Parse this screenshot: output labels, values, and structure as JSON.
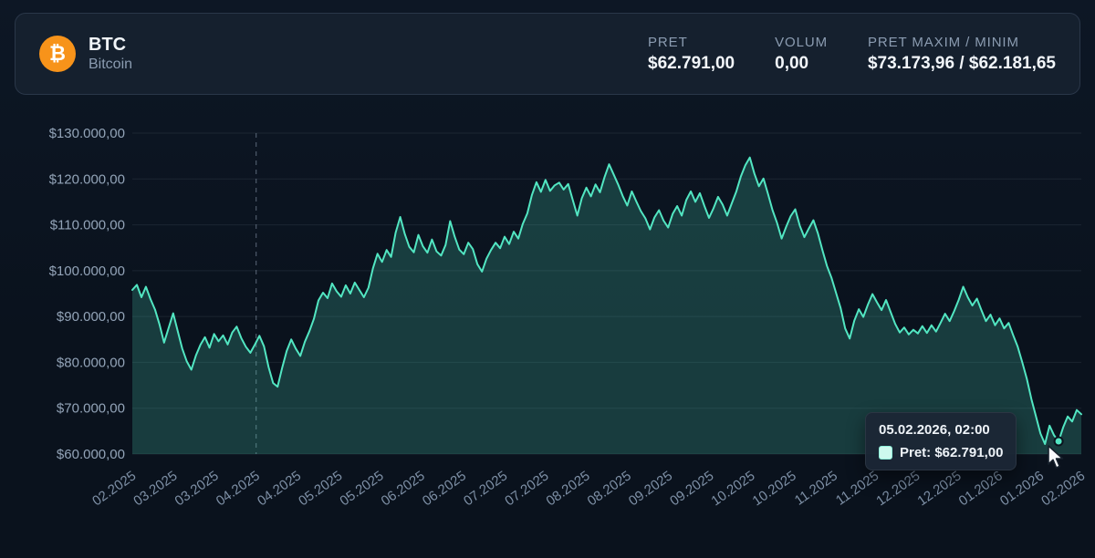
{
  "header": {
    "icon_glyph": "₿",
    "symbol": "BTC",
    "name": "Bitcoin",
    "stats": [
      {
        "label": "PRET",
        "value": "$62.791,00"
      },
      {
        "label": "VOLUM",
        "value": "0,00"
      },
      {
        "label": "PRET MAXIM / MINIM",
        "value": "$73.173,96 / $62.181,65"
      }
    ]
  },
  "tooltip": {
    "date": "05.02.2026, 02:00",
    "price_label": "Pret: $62.791,00",
    "swatch_color": "#cdf9ee"
  },
  "chart_data": {
    "type": "area",
    "title": "",
    "xlabel": "",
    "ylabel": "",
    "legend": "none",
    "grid": "horizontal",
    "ylim": [
      60000,
      130000
    ],
    "y_ticks": [
      "$130.000,00",
      "$120.000,00",
      "$110.000,00",
      "$100.000,00",
      "$90.000,00",
      "$80.000,00",
      "$70.000,00",
      "$60.000,00"
    ],
    "x_ticks": [
      "02.2025",
      "03.2025",
      "03.2025",
      "04.2025",
      "04.2025",
      "05.2025",
      "05.2025",
      "06.2025",
      "06.2025",
      "07.2025",
      "07.2025",
      "08.2025",
      "08.2025",
      "09.2025",
      "09.2025",
      "10.2025",
      "10.2025",
      "11.2025",
      "11.2025",
      "12.2025",
      "12.2025",
      "01.2026",
      "01.2026",
      "02.2026"
    ],
    "dashed_marker_tick_index": 3,
    "line_color": "#52e6c2",
    "fill_color": "rgba(82,230,194,0.20)",
    "grid_color": "rgba(148,163,184,0.12)",
    "axis_label_color": "#93a4b8",
    "x_label_color": "#7e90a6",
    "highlight_point": {
      "index": 204,
      "value": 62791
    },
    "series": [
      {
        "name": "Pret",
        "values": [
          95800,
          96900,
          94200,
          96500,
          93800,
          91500,
          88200,
          84300,
          87500,
          90700,
          86800,
          83000,
          80200,
          78400,
          81500,
          83800,
          85500,
          83200,
          86200,
          84600,
          85900,
          83900,
          86500,
          87800,
          85300,
          83400,
          82100,
          83900,
          85800,
          83500,
          79000,
          75500,
          74700,
          78800,
          82500,
          85000,
          83000,
          81400,
          84500,
          86800,
          89500,
          93500,
          95200,
          94000,
          97200,
          95500,
          94300,
          96800,
          95000,
          97400,
          95800,
          94200,
          96300,
          100500,
          103700,
          101900,
          104500,
          103000,
          108300,
          111700,
          108000,
          105200,
          104000,
          107800,
          105300,
          103900,
          106800,
          104200,
          103300,
          105600,
          110800,
          107400,
          104600,
          103600,
          106100,
          104700,
          101400,
          99800,
          102600,
          104500,
          106100,
          104900,
          107400,
          105800,
          108500,
          107000,
          110200,
          112500,
          116500,
          119300,
          117200,
          119800,
          117400,
          118600,
          119200,
          117700,
          118900,
          115400,
          112000,
          115800,
          118100,
          116200,
          118800,
          117100,
          120400,
          123200,
          121000,
          118800,
          116300,
          114200,
          117300,
          115100,
          113000,
          111400,
          109000,
          111600,
          113200,
          110900,
          109400,
          112400,
          114100,
          112000,
          115400,
          117300,
          115000,
          116900,
          114100,
          111500,
          113600,
          116100,
          114400,
          112000,
          114600,
          117200,
          120500,
          123000,
          124700,
          121200,
          118400,
          120100,
          116700,
          113200,
          110400,
          107000,
          109600,
          111900,
          113400,
          109800,
          107300,
          109200,
          111000,
          108100,
          104400,
          101000,
          98400,
          95100,
          91800,
          87400,
          85200,
          89100,
          91600,
          89900,
          92600,
          94900,
          93100,
          91400,
          93600,
          91000,
          88400,
          86500,
          87600,
          86100,
          87100,
          86300,
          87900,
          86400,
          88100,
          86700,
          88600,
          90600,
          89000,
          91200,
          93600,
          96500,
          94200,
          92400,
          93900,
          91400,
          89000,
          90400,
          88100,
          89600,
          87400,
          88600,
          85900,
          83400,
          80000,
          76400,
          72000,
          68300,
          64500,
          62182,
          66200,
          64100,
          62791,
          65800,
          68200,
          67100,
          69600,
          68700
        ]
      }
    ]
  }
}
